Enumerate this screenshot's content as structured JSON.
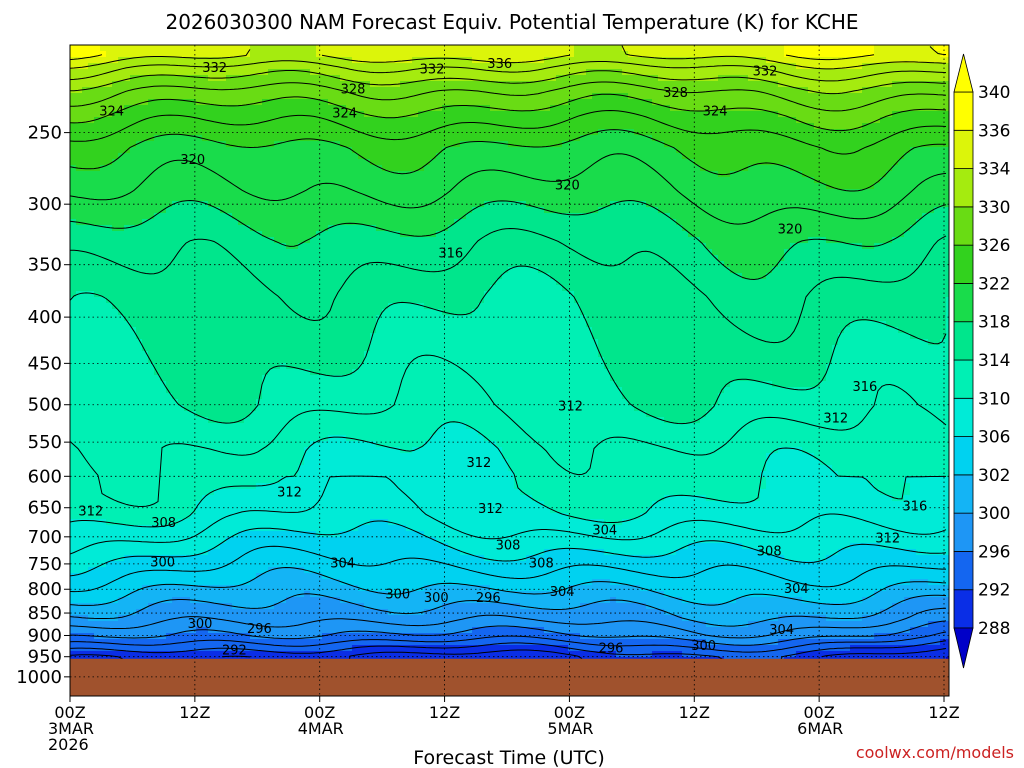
{
  "chart_data": {
    "type": "heatmap",
    "title": "2026030300 NAM Forecast Equiv. Potential Temperature (K) for KCHE",
    "xlabel": "Forecast Time (UTC)",
    "ylabel": "",
    "credit": "coolwx.com/models",
    "x_ticks": [
      {
        "hours": 0,
        "lines": [
          "00Z",
          "3MAR",
          "2026"
        ]
      },
      {
        "hours": 12,
        "lines": [
          "12Z"
        ]
      },
      {
        "hours": 24,
        "lines": [
          "00Z",
          "4MAR"
        ]
      },
      {
        "hours": 36,
        "lines": [
          "12Z"
        ]
      },
      {
        "hours": 48,
        "lines": [
          "00Z",
          "5MAR"
        ]
      },
      {
        "hours": 60,
        "lines": [
          "12Z"
        ]
      },
      {
        "hours": 72,
        "lines": [
          "00Z",
          "6MAR"
        ]
      },
      {
        "hours": 84,
        "lines": [
          "12Z"
        ]
      }
    ],
    "xlim_hours": [
      0,
      84
    ],
    "y_ticks_hpa": [
      250,
      300,
      350,
      400,
      450,
      500,
      550,
      600,
      650,
      700,
      750,
      800,
      850,
      900,
      950,
      1000
    ],
    "ylim_hpa": [
      200,
      1050
    ],
    "y_scale": "log-pressure (inverted)",
    "ground_pressure_hpa": 955,
    "ground_color": "#a0522d",
    "grid": "dotted",
    "colorbar": {
      "levels": [
        288,
        292,
        296,
        300,
        302,
        306,
        310,
        314,
        318,
        322,
        326,
        330,
        334,
        336,
        340
      ],
      "colors": [
        "#0000c8",
        "#0a2ee6",
        "#1466f0",
        "#1e96f5",
        "#14b4f5",
        "#00d2f0",
        "#00ebd7",
        "#00f0b4",
        "#00e68c",
        "#19dc4b",
        "#32d21e",
        "#69dc14",
        "#a5eb0f",
        "#dcf50a",
        "#ffff00"
      ],
      "extend": "both"
    },
    "contour_interval_K": 2,
    "contour_labels": [
      {
        "text": "336",
        "hours": 41.3,
        "hpa": 210
      },
      {
        "text": "332",
        "hours": 13.9,
        "hpa": 212
      },
      {
        "text": "332",
        "hours": 34.8,
        "hpa": 213
      },
      {
        "text": "332",
        "hours": 66.8,
        "hpa": 214
      },
      {
        "text": "328",
        "hours": 27.2,
        "hpa": 224
      },
      {
        "text": "328",
        "hours": 58.2,
        "hpa": 226
      },
      {
        "text": "324",
        "hours": 4.0,
        "hpa": 237
      },
      {
        "text": "324",
        "hours": 26.4,
        "hpa": 238
      },
      {
        "text": "324",
        "hours": 62.0,
        "hpa": 237
      },
      {
        "text": "320",
        "hours": 11.8,
        "hpa": 268
      },
      {
        "text": "320",
        "hours": 47.8,
        "hpa": 286
      },
      {
        "text": "320",
        "hours": 69.2,
        "hpa": 320
      },
      {
        "text": "316",
        "hours": 36.6,
        "hpa": 340
      },
      {
        "text": "316",
        "hours": 76.4,
        "hpa": 478
      },
      {
        "text": "312",
        "hours": 48.1,
        "hpa": 502
      },
      {
        "text": "312",
        "hours": 73.6,
        "hpa": 518
      },
      {
        "text": "312",
        "hours": 39.3,
        "hpa": 580
      },
      {
        "text": "312",
        "hours": 21.1,
        "hpa": 625
      },
      {
        "text": "312",
        "hours": 40.4,
        "hpa": 652
      },
      {
        "text": "316",
        "hours": 81.2,
        "hpa": 648
      },
      {
        "text": "312",
        "hours": 2.0,
        "hpa": 656
      },
      {
        "text": "308",
        "hours": 9.0,
        "hpa": 676
      },
      {
        "text": "304",
        "hours": 51.4,
        "hpa": 689
      },
      {
        "text": "312",
        "hours": 78.6,
        "hpa": 703
      },
      {
        "text": "308",
        "hours": 42.1,
        "hpa": 716
      },
      {
        "text": "308",
        "hours": 67.2,
        "hpa": 727
      },
      {
        "text": "300",
        "hours": 8.9,
        "hpa": 747
      },
      {
        "text": "304",
        "hours": 26.2,
        "hpa": 749
      },
      {
        "text": "308",
        "hours": 45.3,
        "hpa": 749
      },
      {
        "text": "304",
        "hours": 47.3,
        "hpa": 806
      },
      {
        "text": "304",
        "hours": 69.8,
        "hpa": 800
      },
      {
        "text": "300",
        "hours": 31.5,
        "hpa": 811
      },
      {
        "text": "300",
        "hours": 35.2,
        "hpa": 818
      },
      {
        "text": "296",
        "hours": 40.2,
        "hpa": 818
      },
      {
        "text": "300",
        "hours": 12.5,
        "hpa": 874
      },
      {
        "text": "296",
        "hours": 18.2,
        "hpa": 885
      },
      {
        "text": "304",
        "hours": 68.4,
        "hpa": 888
      },
      {
        "text": "292",
        "hours": 15.8,
        "hpa": 935
      },
      {
        "text": "296",
        "hours": 52.0,
        "hpa": 930
      },
      {
        "text": "300",
        "hours": 60.9,
        "hpa": 925
      }
    ],
    "profile_surface_to_top_K": [
      {
        "hpa": 950,
        "theta_e": 290
      },
      {
        "hpa": 925,
        "theta_e": 293
      },
      {
        "hpa": 900,
        "theta_e": 296
      },
      {
        "hpa": 860,
        "theta_e": 299
      },
      {
        "hpa": 820,
        "theta_e": 301
      },
      {
        "hpa": 780,
        "theta_e": 303
      },
      {
        "hpa": 740,
        "theta_e": 305
      },
      {
        "hpa": 700,
        "theta_e": 307
      },
      {
        "hpa": 660,
        "theta_e": 309
      },
      {
        "hpa": 620,
        "theta_e": 310
      },
      {
        "hpa": 560,
        "theta_e": 311
      },
      {
        "hpa": 500,
        "theta_e": 313
      },
      {
        "hpa": 440,
        "theta_e": 314
      },
      {
        "hpa": 380,
        "theta_e": 315
      },
      {
        "hpa": 330,
        "theta_e": 317
      },
      {
        "hpa": 290,
        "theta_e": 320
      },
      {
        "hpa": 260,
        "theta_e": 322
      },
      {
        "hpa": 240,
        "theta_e": 325
      },
      {
        "hpa": 225,
        "theta_e": 328
      },
      {
        "hpa": 212,
        "theta_e": 332
      },
      {
        "hpa": 205,
        "theta_e": 335
      }
    ]
  }
}
